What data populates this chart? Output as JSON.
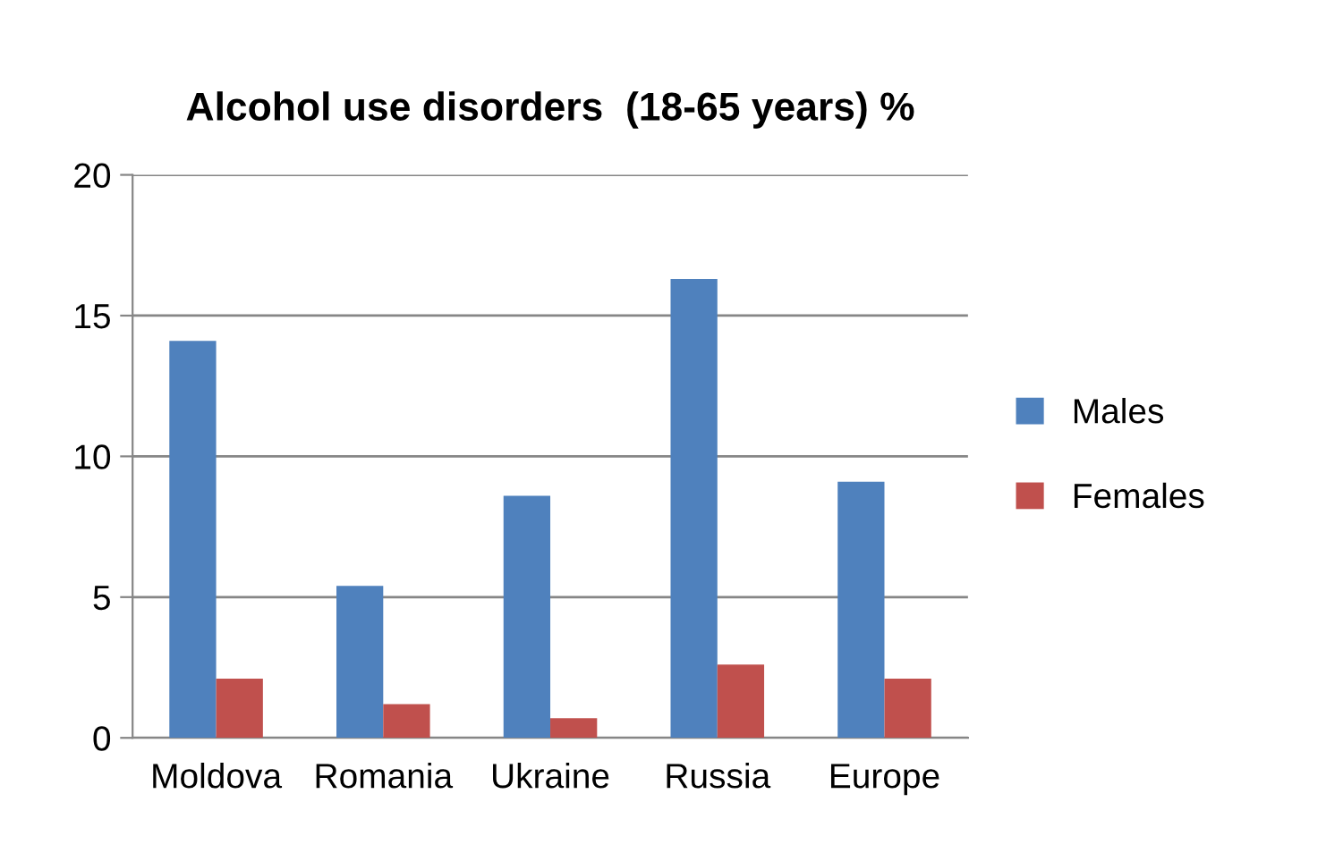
{
  "chart_data": {
    "type": "bar",
    "title": "Alcohol use disorders  (18-65 years) %",
    "categories": [
      "Moldova",
      "Romania",
      "Ukraine",
      "Russia",
      "Europe"
    ],
    "series": [
      {
        "name": "Males",
        "color": "#4f81bd",
        "values": [
          14.1,
          5.4,
          8.6,
          16.3,
          9.1
        ]
      },
      {
        "name": "Females",
        "color": "#c0504d",
        "values": [
          2.1,
          1.2,
          0.7,
          2.6,
          2.1
        ]
      }
    ],
    "ylim": [
      0,
      20
    ],
    "yticks": [
      0,
      5,
      10,
      15,
      20
    ],
    "grid": "y",
    "legend": "right"
  }
}
